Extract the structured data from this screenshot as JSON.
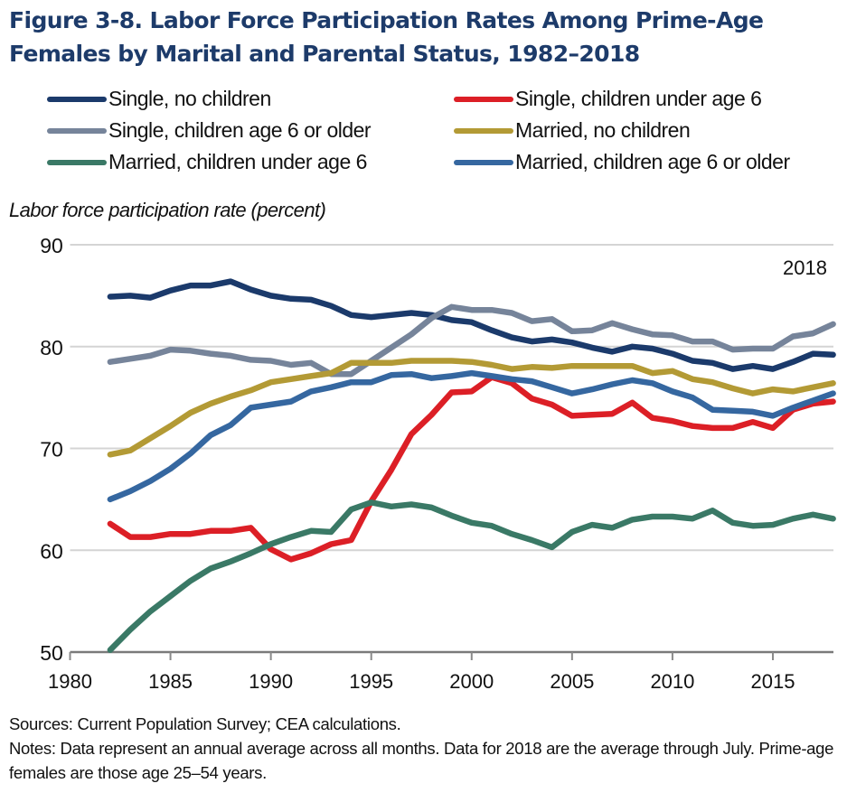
{
  "figure": {
    "title": "Figure 3-8. Labor Force Participation Rates Among Prime-Age Females by Marital and Parental Status, 1982–2018",
    "annotation": "2018",
    "sources": "Sources: Current Population Survey; CEA calculations.",
    "notes": "Notes: Data represent an annual average across all months. Data for 2018 are the average through July.  Prime-age females are those age 25–54 years."
  },
  "chart_data": {
    "type": "line",
    "title": "Figure 3-8. Labor Force Participation Rates Among Prime-Age Females by Marital and Parental Status, 1982–2018",
    "xlabel": "",
    "ylabel": "Labor force participation rate (percent)",
    "xlim": [
      1980,
      2018
    ],
    "ylim": [
      50,
      90
    ],
    "xticks": [
      1980,
      1985,
      1990,
      1995,
      2000,
      2005,
      2010,
      2015
    ],
    "yticks": [
      50,
      60,
      70,
      80,
      90
    ],
    "grid": "horizontal",
    "legend_position": "top",
    "annotations": [
      {
        "text": "2018",
        "x": 2018
      }
    ],
    "x": [
      1982,
      1983,
      1984,
      1985,
      1986,
      1987,
      1988,
      1989,
      1990,
      1991,
      1992,
      1993,
      1994,
      1995,
      1996,
      1997,
      1998,
      1999,
      2000,
      2001,
      2002,
      2003,
      2004,
      2005,
      2006,
      2007,
      2008,
      2009,
      2010,
      2011,
      2012,
      2013,
      2014,
      2015,
      2016,
      2017,
      2018
    ],
    "series": [
      {
        "name": "Single, no children",
        "color": "#1b3a6b",
        "values": [
          84.9,
          85.0,
          84.8,
          85.5,
          86.0,
          86.0,
          86.4,
          85.6,
          85.0,
          84.7,
          84.6,
          84.0,
          83.1,
          82.9,
          83.1,
          83.3,
          83.1,
          82.6,
          82.4,
          81.6,
          80.9,
          80.5,
          80.7,
          80.4,
          79.9,
          79.5,
          80.0,
          79.8,
          79.3,
          78.6,
          78.4,
          77.8,
          78.1,
          77.8,
          78.5,
          79.3,
          79.2
        ]
      },
      {
        "name": "Single, children under age 6",
        "color": "#dc1f26",
        "values": [
          62.6,
          61.3,
          61.3,
          61.6,
          61.6,
          61.9,
          61.9,
          62.2,
          60.1,
          59.1,
          59.7,
          60.6,
          61.0,
          64.8,
          67.9,
          71.4,
          73.3,
          75.5,
          75.6,
          77.0,
          76.4,
          74.9,
          74.3,
          73.2,
          73.3,
          73.4,
          74.5,
          73.0,
          72.7,
          72.2,
          72.0,
          72.0,
          72.6,
          72.0,
          73.8,
          74.4,
          74.6
        ]
      },
      {
        "name": "Single, children age 6 or older",
        "color": "#76849a",
        "values": [
          78.5,
          78.8,
          79.1,
          79.7,
          79.6,
          79.3,
          79.1,
          78.7,
          78.6,
          78.2,
          78.4,
          77.3,
          77.3,
          78.6,
          79.9,
          81.2,
          82.8,
          83.9,
          83.6,
          83.6,
          83.3,
          82.5,
          82.7,
          81.5,
          81.6,
          82.3,
          81.7,
          81.2,
          81.1,
          80.5,
          80.5,
          79.7,
          79.8,
          79.8,
          81.0,
          81.3,
          82.2
        ]
      },
      {
        "name": "Married, no children",
        "color": "#b39a35",
        "values": [
          69.4,
          69.8,
          71.0,
          72.2,
          73.5,
          74.4,
          75.1,
          75.7,
          76.5,
          76.8,
          77.1,
          77.4,
          78.4,
          78.4,
          78.4,
          78.6,
          78.6,
          78.6,
          78.5,
          78.2,
          77.8,
          78.0,
          77.9,
          78.1,
          78.1,
          78.1,
          78.1,
          77.4,
          77.6,
          76.8,
          76.5,
          75.9,
          75.4,
          75.8,
          75.6,
          76.0,
          76.4
        ]
      },
      {
        "name": "Married, children under age 6",
        "color": "#3a7966",
        "values": [
          50.2,
          52.2,
          54.0,
          55.5,
          57.0,
          58.2,
          58.9,
          59.7,
          60.6,
          61.3,
          61.9,
          61.8,
          64.0,
          64.7,
          64.3,
          64.5,
          64.2,
          63.4,
          62.7,
          62.4,
          61.6,
          61.0,
          60.3,
          61.8,
          62.5,
          62.2,
          63.0,
          63.3,
          63.3,
          63.1,
          63.9,
          62.7,
          62.4,
          62.5,
          63.1,
          63.5,
          63.1
        ]
      },
      {
        "name": "Married, children age 6 or older",
        "color": "#3567a0",
        "values": [
          65.0,
          65.8,
          66.8,
          68.0,
          69.5,
          71.3,
          72.3,
          74.0,
          74.3,
          74.6,
          75.6,
          76.0,
          76.5,
          76.5,
          77.2,
          77.3,
          76.9,
          77.1,
          77.4,
          77.1,
          76.8,
          76.6,
          76.0,
          75.4,
          75.8,
          76.3,
          76.7,
          76.4,
          75.6,
          75.0,
          73.8,
          73.7,
          73.6,
          73.2,
          74.0,
          74.7,
          75.4
        ]
      }
    ],
    "legend": [
      "Single, no children",
      "Single, children under age 6",
      "Single, children age 6 or older",
      "Married, no children",
      "Married, children under age 6",
      "Married, children age 6 or older"
    ]
  }
}
